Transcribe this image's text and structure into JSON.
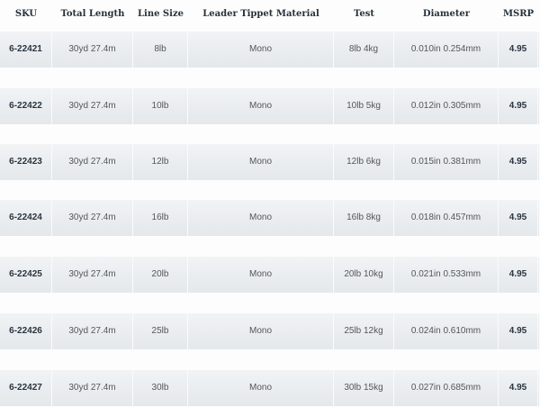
{
  "headers": [
    "SKU",
    "Total Length",
    "Line Size",
    "Leader Tippet Material",
    "Test",
    "Diameter",
    "MSRP"
  ],
  "rows": [
    [
      "6-22421",
      "30yd 27.4m",
      "8lb",
      "Mono",
      "8lb 4kg",
      "0.010in 0.254mm",
      "4.95"
    ],
    [
      "6-22422",
      "30yd 27.4m",
      "10lb",
      "Mono",
      "10lb 5kg",
      "0.012in 0.305mm",
      "4.95"
    ],
    [
      "6-22423",
      "30yd 27.4m",
      "12lb",
      "Mono",
      "12lb 6kg",
      "0.015in 0.381mm",
      "4.95"
    ],
    [
      "6-22424",
      "30yd 27.4m",
      "16lb",
      "Mono",
      "16lb 8kg",
      "0.018in 0.457mm",
      "4.95"
    ],
    [
      "6-22425",
      "30yd 27.4m",
      "20lb",
      "Mono",
      "20lb 10kg",
      "0.021in 0.533mm",
      "4.95"
    ],
    [
      "6-22426",
      "30yd 27.4m",
      "25lb",
      "Mono",
      "25lb 12kg",
      "0.024in 0.610mm",
      "4.95"
    ],
    [
      "6-22427",
      "30yd 27.4m",
      "30lb",
      "Mono",
      "30lb 15kg",
      "0.027in 0.685mm",
      "4.95"
    ]
  ]
}
